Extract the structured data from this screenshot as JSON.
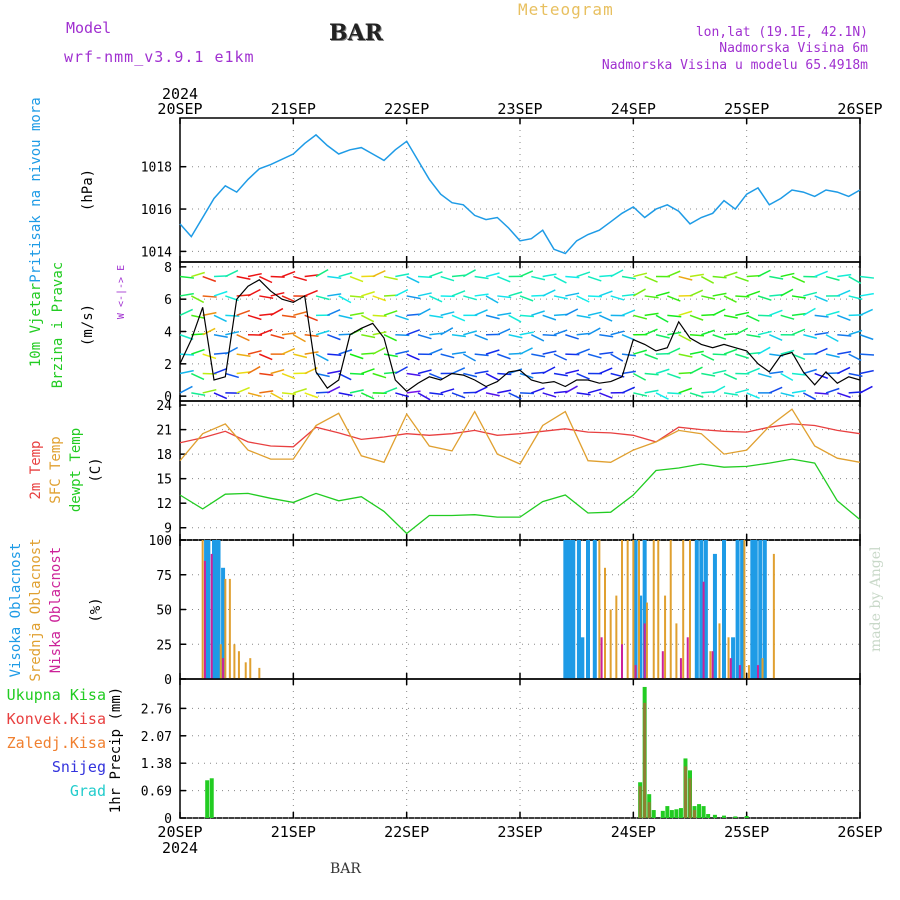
{
  "header": {
    "model_label": "Model",
    "model_name": "wrf-nmm_v3.9.1 e1km",
    "station": "BAR",
    "title": "Meteogram",
    "coords": "lon,lat (19.1E, 42.1N)",
    "elevation": "Nadmorska Visina 6m",
    "model_elevation": "Nadmorska Visina u modelu 65.4918m",
    "watermark": "made by Angel",
    "footer_station": "BAR"
  },
  "colors": {
    "pressure": "#1e9be6",
    "wind_speed_title": "#22cc22",
    "temp2m": "#e84040",
    "sfc_temp": "#e0a030",
    "dewpoint": "#22cc22",
    "cloud_high": "#1e9be6",
    "cloud_mid": "#e0a030",
    "cloud_low": "#cc2299",
    "precip_total": "#22cc22",
    "precip_conv": "#e84040",
    "precip_strat": "#f08030",
    "snow": "#3333dd",
    "hail": "#22cccc",
    "model_label": "#a030d0",
    "title": "#e8c060",
    "grid": "#888888"
  },
  "chart_data": [
    {
      "type": "line",
      "panel": "pressure",
      "ylabel_main": "Pritisak na nivou mora",
      "ylabel_unit": "(hPa)",
      "y_ticks": [
        "1014",
        "1016",
        "1018"
      ],
      "ylim": [
        1013.5,
        1020.3
      ],
      "x_labels_top": [
        "20SEP",
        "21SEP",
        "22SEP",
        "23SEP",
        "24SEP",
        "25SEP",
        "26SEP"
      ],
      "x_year": "2024",
      "x": [
        0,
        0.1,
        0.2,
        0.3,
        0.4,
        0.5,
        0.6,
        0.7,
        0.8,
        1.0,
        1.1,
        1.2,
        1.3,
        1.4,
        1.5,
        1.6,
        1.7,
        1.8,
        1.9,
        2.0,
        2.1,
        2.2,
        2.3,
        2.4,
        2.5,
        2.6,
        2.7,
        2.8,
        2.9,
        3.0,
        3.1,
        3.2,
        3.3,
        3.4,
        3.5,
        3.6,
        3.7,
        3.8,
        3.9,
        4.0,
        4.1,
        4.2,
        4.3,
        4.4,
        4.5,
        4.6,
        4.7,
        4.8,
        4.9,
        5.0,
        5.1,
        5.2,
        5.3,
        5.4,
        5.5,
        5.6,
        5.7,
        5.8,
        5.9,
        6.0
      ],
      "values": [
        1015.3,
        1014.7,
        1015.6,
        1016.5,
        1017.1,
        1016.8,
        1017.4,
        1017.9,
        1018.1,
        1018.6,
        1019.1,
        1019.5,
        1019.0,
        1018.6,
        1018.8,
        1018.9,
        1018.6,
        1018.3,
        1018.8,
        1019.2,
        1018.3,
        1017.4,
        1016.7,
        1016.3,
        1016.2,
        1015.7,
        1015.5,
        1015.6,
        1015.1,
        1014.5,
        1014.6,
        1015.0,
        1014.1,
        1013.9,
        1014.5,
        1014.8,
        1015.0,
        1015.4,
        1015.8,
        1016.1,
        1015.6,
        1016.0,
        1016.2,
        1015.9,
        1015.3,
        1015.6,
        1015.8,
        1016.4,
        1016.0,
        1016.7,
        1017.0,
        1016.2,
        1016.5,
        1016.9,
        1016.8,
        1016.6,
        1016.9,
        1016.8,
        1016.6,
        1016.9
      ]
    },
    {
      "type": "line",
      "panel": "wind",
      "ylabel_main": "10m Vjetar",
      "ylabel_sub": "Brzina i Pravac",
      "ylabel_unit": "(m/s)",
      "compass": "W <-|-> E",
      "y_ticks": [
        "0",
        "2",
        "4",
        "6",
        "8"
      ],
      "ylim": [
        -0.3,
        8.3
      ],
      "x": [
        0,
        0.1,
        0.2,
        0.3,
        0.4,
        0.5,
        0.6,
        0.7,
        0.8,
        0.9,
        1.0,
        1.1,
        1.2,
        1.3,
        1.4,
        1.5,
        1.6,
        1.7,
        1.8,
        1.9,
        2.0,
        2.1,
        2.2,
        2.3,
        2.4,
        2.5,
        2.6,
        2.7,
        2.8,
        2.9,
        3.0,
        3.1,
        3.2,
        3.3,
        3.4,
        3.5,
        3.6,
        3.7,
        3.8,
        3.9,
        4.0,
        4.1,
        4.2,
        4.3,
        4.4,
        4.5,
        4.6,
        4.7,
        4.8,
        4.9,
        5.0,
        5.1,
        5.2,
        5.3,
        5.4,
        5.5,
        5.6,
        5.7,
        5.8,
        5.9,
        6.0
      ],
      "values": [
        2.0,
        3.5,
        5.5,
        1.0,
        1.2,
        6.0,
        6.8,
        7.2,
        6.5,
        6.0,
        5.8,
        6.2,
        1.5,
        0.5,
        1.0,
        3.8,
        4.2,
        4.5,
        3.6,
        1.0,
        0.3,
        0.8,
        1.2,
        1.0,
        1.4,
        1.3,
        1.0,
        0.6,
        0.9,
        1.5,
        1.6,
        1.0,
        0.8,
        0.9,
        0.6,
        1.0,
        1.0,
        0.8,
        0.9,
        1.2,
        3.5,
        3.2,
        2.8,
        3.0,
        4.6,
        3.6,
        3.2,
        3.0,
        3.2,
        3.0,
        2.8,
        2.0,
        1.5,
        2.5,
        2.7,
        1.5,
        0.7,
        1.5,
        0.8,
        1.2,
        1.0
      ]
    },
    {
      "type": "line",
      "panel": "temperature",
      "ylabel_lines": [
        "2m Temp",
        "SFC Temp",
        "dewpt Temp"
      ],
      "ylabel_unit": "(C)",
      "y_ticks": [
        "9",
        "12",
        "15",
        "18",
        "21",
        "24"
      ],
      "ylim": [
        7.5,
        24.5
      ],
      "x": [
        0,
        0.2,
        0.4,
        0.6,
        0.8,
        1.0,
        1.2,
        1.4,
        1.6,
        1.8,
        2.0,
        2.2,
        2.4,
        2.6,
        2.8,
        3.0,
        3.2,
        3.4,
        3.6,
        3.8,
        4.0,
        4.2,
        4.4,
        4.6,
        4.8,
        5.0,
        5.2,
        5.4,
        5.6,
        5.8,
        6.0
      ],
      "series": [
        {
          "name": "2m Temp",
          "values": [
            19.4,
            20.0,
            20.8,
            19.5,
            19.0,
            18.9,
            21.3,
            20.6,
            19.8,
            20.1,
            20.5,
            20.3,
            20.5,
            20.9,
            20.3,
            20.5,
            20.8,
            21.1,
            20.7,
            20.6,
            20.3,
            19.5,
            21.3,
            21.0,
            20.8,
            20.7,
            21.3,
            21.7,
            21.5,
            20.9,
            20.5
          ]
        },
        {
          "name": "SFC Temp",
          "values": [
            17.2,
            20.5,
            21.7,
            18.5,
            17.4,
            17.4,
            21.5,
            23.0,
            17.8,
            17.0,
            22.9,
            19.0,
            18.4,
            23.2,
            18.0,
            16.8,
            21.5,
            23.2,
            17.2,
            17.0,
            18.5,
            19.5,
            20.9,
            20.5,
            18.0,
            18.5,
            21.4,
            23.5,
            19.0,
            17.5,
            17.0
          ]
        },
        {
          "name": "dewpt Temp",
          "values": [
            13.0,
            11.3,
            13.1,
            13.2,
            12.6,
            12.1,
            13.2,
            12.3,
            12.8,
            11.0,
            8.3,
            10.5,
            10.5,
            10.6,
            10.3,
            10.3,
            12.2,
            13.0,
            10.8,
            10.9,
            13.0,
            16.0,
            16.3,
            16.8,
            16.4,
            16.5,
            16.9,
            17.4,
            16.9,
            12.3,
            10.0
          ]
        }
      ]
    },
    {
      "type": "bar",
      "panel": "cloud",
      "ylabel_lines": [
        "Visoka Oblacnost",
        "Srednja Oblacnost",
        "Niska Oblacnost"
      ],
      "ylabel_unit": "(%)",
      "y_ticks": [
        "0",
        "25",
        "50",
        "75",
        "100"
      ],
      "ylim": [
        0,
        100
      ],
      "series": [
        {
          "name": "Visoka Oblacnost",
          "x": [
            0.23,
            0.25,
            0.3,
            0.32,
            0.34,
            0.38,
            3.4,
            3.42,
            3.44,
            3.47,
            3.52,
            3.55,
            3.6,
            3.66,
            4.02,
            4.06,
            4.1,
            4.56,
            4.6,
            4.64,
            4.72,
            4.8,
            4.88,
            4.92,
            4.96,
            5.05,
            5.08,
            5.12,
            5.16
          ],
          "values": [
            100,
            100,
            100,
            100,
            100,
            80,
            100,
            100,
            100,
            100,
            100,
            30,
            100,
            100,
            100,
            60,
            100,
            100,
            100,
            100,
            90,
            100,
            30,
            100,
            100,
            100,
            100,
            100,
            100
          ]
        },
        {
          "name": "Srednja Oblacnost",
          "x": [
            0.2,
            0.36,
            0.4,
            0.44,
            0.48,
            0.52,
            0.58,
            0.62,
            0.7,
            3.7,
            3.75,
            3.8,
            3.85,
            3.9,
            3.95,
            4.0,
            4.05,
            4.12,
            4.18,
            4.22,
            4.28,
            4.33,
            4.38,
            4.44,
            4.5,
            4.68,
            4.76,
            4.84,
            4.98,
            5.02,
            5.14,
            5.24
          ],
          "values": [
            100,
            25,
            72,
            72,
            25,
            20,
            12,
            15,
            8,
            100,
            80,
            50,
            60,
            100,
            100,
            100,
            100,
            55,
            100,
            100,
            60,
            100,
            40,
            100,
            100,
            20,
            40,
            30,
            100,
            10,
            15,
            90
          ]
        },
        {
          "name": "Niska Oblacnost",
          "x": [
            0.22,
            0.28,
            0.38,
            3.72,
            3.9,
            4.02,
            4.1,
            4.26,
            4.42,
            4.48,
            4.62,
            4.7,
            4.86,
            4.94,
            5.1
          ],
          "values": [
            85,
            90,
            15,
            30,
            25,
            10,
            40,
            20,
            15,
            30,
            70,
            20,
            15,
            10,
            10
          ]
        }
      ]
    },
    {
      "type": "bar",
      "panel": "precip",
      "ylabel_main": "1hr Precip",
      "ylabel_unit": "(mm)",
      "legend": [
        "Ukupna Kisa",
        "Konvek.Kisa",
        "Zaledj.Kisa",
        "Snijeg",
        "Grad"
      ],
      "y_ticks": [
        "0",
        "0.69",
        "1.38",
        "2.07",
        "2.76"
      ],
      "ylim": [
        0,
        3.5
      ],
      "x_labels_bottom": [
        "20SEP",
        "21SEP",
        "22SEP",
        "23SEP",
        "24SEP",
        "25SEP",
        "26SEP"
      ],
      "x_year": "2024",
      "series": [
        {
          "name": "Ukupna Kisa",
          "x": [
            0.24,
            0.28,
            4.06,
            4.1,
            4.14,
            4.18,
            4.26,
            4.3,
            4.34,
            4.38,
            4.42,
            4.46,
            4.5,
            4.54,
            4.58,
            4.62,
            4.66,
            4.72,
            4.8,
            4.9,
            5.0
          ],
          "values": [
            0.95,
            1.0,
            0.9,
            3.3,
            0.6,
            0.2,
            0.18,
            0.3,
            0.2,
            0.22,
            0.25,
            1.5,
            1.2,
            0.3,
            0.35,
            0.3,
            0.1,
            0.08,
            0.06,
            0.04,
            0.05
          ]
        },
        {
          "name": "Konvek.Kisa",
          "x": [
            4.06,
            4.1,
            4.14,
            4.46,
            4.5,
            4.54
          ],
          "values": [
            0.8,
            2.9,
            0.4,
            1.3,
            1.0,
            0.2
          ]
        }
      ]
    }
  ]
}
